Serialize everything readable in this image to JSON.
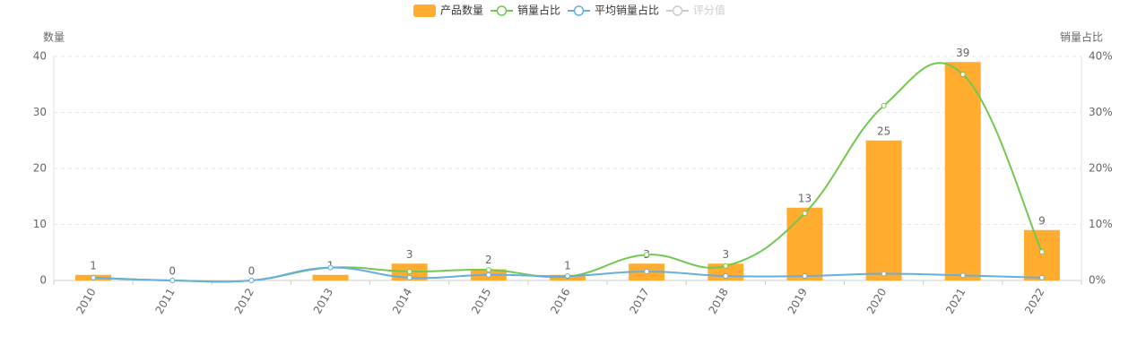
{
  "chart_data": {
    "type": "bar-line",
    "categories": [
      "2010",
      "2011",
      "2012",
      "2013",
      "2014",
      "2015",
      "2016",
      "2017",
      "2018",
      "2019",
      "2020",
      "2021",
      "2022"
    ],
    "series": [
      {
        "name": "产品数量",
        "type": "bar",
        "color": "#ffac2f",
        "axis": "y",
        "values": [
          1,
          0,
          0,
          1,
          3,
          2,
          1,
          3,
          3,
          13,
          25,
          39,
          9
        ]
      },
      {
        "name": "销量占比",
        "type": "line",
        "color": "#73c851",
        "axis": "y2",
        "values": [
          0.5,
          0,
          0,
          2.3,
          1.6,
          1.9,
          0.7,
          4.6,
          2.6,
          12,
          31.2,
          36.8,
          5.1
        ]
      },
      {
        "name": "平均销量占比",
        "type": "line",
        "color": "#67aee0",
        "axis": "y2",
        "values": [
          0.5,
          0,
          0,
          2.3,
          0.5,
          1.0,
          0.8,
          1.6,
          0.8,
          0.8,
          1.2,
          0.9,
          0.5
        ]
      }
    ],
    "legend_inactive": [
      "评分值"
    ],
    "ylabel": "数量",
    "y2label": "销量占比",
    "ylim": [
      0,
      40
    ],
    "yticks": [
      0,
      10,
      20,
      30,
      40
    ],
    "y2lim": [
      0,
      40
    ],
    "y2ticks": [
      {
        "value": 0,
        "label": "0%"
      },
      {
        "value": 10,
        "label": "10%"
      },
      {
        "value": 20,
        "label": "20%"
      },
      {
        "value": 30,
        "label": "30%"
      },
      {
        "value": 40,
        "label": "40%"
      }
    ],
    "grid": true,
    "legend": "top"
  }
}
